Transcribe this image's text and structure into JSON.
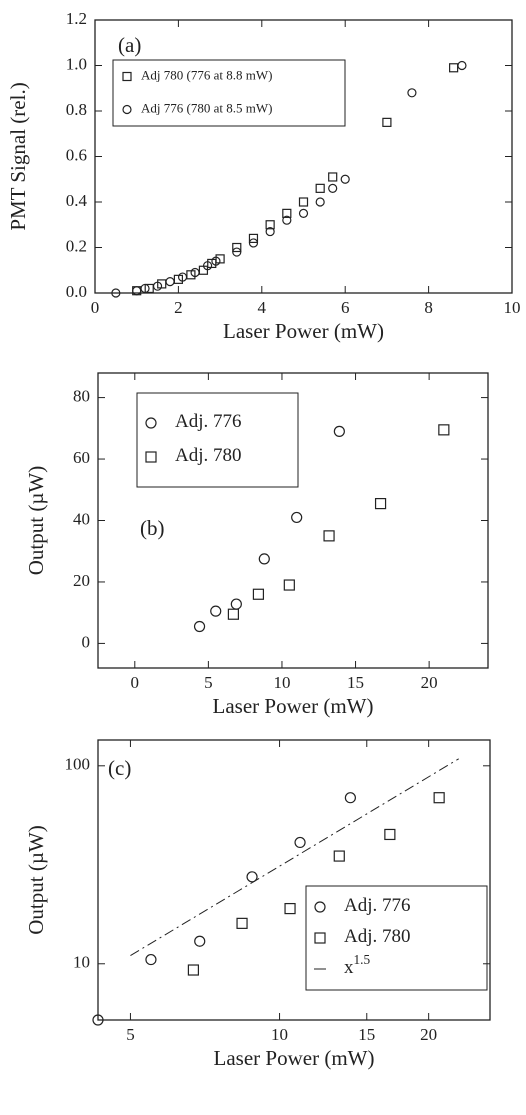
{
  "chart_data": [
    {
      "type": "scatter",
      "annotation": "(a)",
      "xlabel": "Laser Power (mW)",
      "ylabel": "PMT Signal (rel.)",
      "xlim": [
        0,
        10
      ],
      "ylim": [
        0,
        1.2
      ],
      "xticks": [
        0,
        2,
        4,
        6,
        8,
        10
      ],
      "yticks": [
        {
          "value": 0,
          "label": "0.0"
        },
        0.2,
        0.4,
        0.6,
        0.8,
        {
          "value": 1,
          "label": "1.0"
        },
        1.2
      ],
      "series": [
        {
          "name": "Adj 780 (776 at 8.8 mW)",
          "marker": "square",
          "color": "#222",
          "x": [
            1.0,
            1.3,
            1.6,
            2.0,
            2.3,
            2.6,
            2.8,
            3.0,
            3.4,
            3.8,
            4.2,
            4.6,
            5.0,
            5.4,
            5.7,
            7.0,
            8.6
          ],
          "values": [
            0.01,
            0.02,
            0.04,
            0.06,
            0.08,
            0.1,
            0.13,
            0.15,
            0.2,
            0.24,
            0.3,
            0.35,
            0.4,
            0.46,
            0.51,
            0.75,
            0.99
          ]
        },
        {
          "name": "Adj 776 (780 at 8.5 mW)",
          "marker": "circle",
          "color": "#222",
          "x": [
            0.5,
            1.0,
            1.2,
            1.5,
            1.8,
            2.1,
            2.4,
            2.7,
            2.9,
            3.4,
            3.8,
            4.2,
            4.6,
            5.0,
            5.4,
            5.7,
            6.0,
            7.6,
            8.8
          ],
          "values": [
            0.0,
            0.01,
            0.02,
            0.03,
            0.05,
            0.07,
            0.09,
            0.12,
            0.14,
            0.18,
            0.22,
            0.27,
            0.32,
            0.35,
            0.4,
            0.46,
            0.5,
            0.88,
            1.0
          ]
        }
      ]
    },
    {
      "type": "scatter",
      "annotation": "(b)",
      "xlabel": "Laser Power (mW)",
      "ylabel": "Output (µW)",
      "xlim": [
        -2.5,
        24
      ],
      "ylim": [
        -8,
        88
      ],
      "xticks": [
        0,
        5,
        10,
        15,
        20
      ],
      "yticks": [
        0,
        20,
        40,
        60,
        80
      ],
      "series": [
        {
          "name": "Adj. 776",
          "marker": "circle",
          "color": "#222",
          "x": [
            4.4,
            5.5,
            6.9,
            8.8,
            11.0,
            13.9
          ],
          "values": [
            5.5,
            10.5,
            12.8,
            27.5,
            41,
            69
          ]
        },
        {
          "name": "Adj. 780",
          "marker": "square",
          "color": "#222",
          "x": [
            6.7,
            8.4,
            10.5,
            13.2,
            16.7,
            21.0
          ],
          "values": [
            9.5,
            16,
            19,
            35,
            45.5,
            69.5
          ]
        }
      ]
    },
    {
      "type": "scatter",
      "annotation": "(c)",
      "xlabel": "Laser Power (mW)",
      "ylabel": "Output (µW)",
      "xlog": true,
      "ylog": true,
      "xlim": [
        4.3,
        26.6
      ],
      "ylim": [
        5.2,
        135
      ],
      "xticks": [
        5,
        10,
        15,
        20
      ],
      "yticks": [
        10,
        100
      ],
      "series": [
        {
          "name": "Adj. 776",
          "marker": "circle",
          "color": "#222",
          "x": [
            4.3,
            5.5,
            6.9,
            8.8,
            11.0,
            13.9
          ],
          "values": [
            5.2,
            10.5,
            13,
            27.5,
            41,
            69
          ]
        },
        {
          "name": "Adj. 780",
          "marker": "square",
          "color": "#222",
          "x": [
            6.7,
            8.4,
            10.5,
            13.2,
            16.7,
            21.0
          ],
          "values": [
            9.3,
            16,
            19,
            35,
            45,
            69
          ]
        },
        {
          "name": "x",
          "name_sup": "1.5",
          "marker": "line",
          "color": "#222",
          "x": [
            5,
            23
          ],
          "values": [
            11,
            108.5
          ]
        }
      ]
    }
  ]
}
